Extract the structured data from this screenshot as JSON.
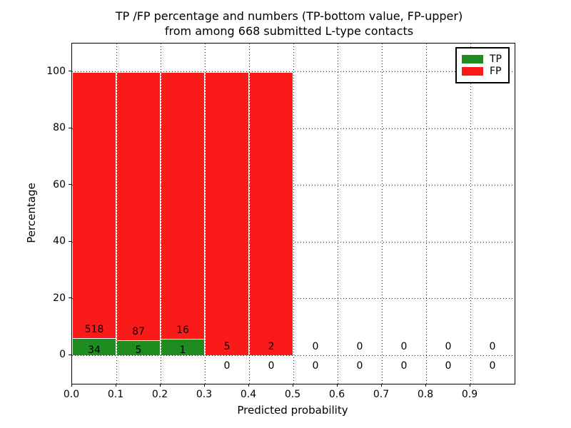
{
  "figure": {
    "title_line1": "TP /FP percentage and numbers (TP-bottom value, FP-upper)",
    "title_line2": "from among 668 submitted L-type contacts"
  },
  "chart_data": {
    "type": "bar",
    "stacked": true,
    "title": "TP /FP percentage and numbers (TP-bottom value, FP-upper) from among 668 submitted L-type contacts",
    "xlabel": "Predicted probability",
    "ylabel": "Percentage",
    "xlim": [
      0.0,
      1.0
    ],
    "ylim": [
      -10,
      110
    ],
    "xtick_labels": [
      "0.0",
      "0.1",
      "0.2",
      "0.3",
      "0.4",
      "0.5",
      "0.6",
      "0.7",
      "0.8",
      "0.9"
    ],
    "xtick_values": [
      0.0,
      0.1,
      0.2,
      0.3,
      0.4,
      0.5,
      0.6,
      0.7,
      0.8,
      0.9
    ],
    "ytick_values": [
      0,
      20,
      40,
      60,
      80,
      100
    ],
    "grid": true,
    "grid_style": "dotted",
    "bin_width": 0.1,
    "total_contacts": 668,
    "legend": {
      "position": "upper right",
      "entries": [
        {
          "label": "TP",
          "color": "#1e8c1e"
        },
        {
          "label": "FP",
          "color": "#fb1a1a"
        }
      ]
    },
    "series": [
      {
        "name": "TP",
        "role": "bottom",
        "color": "#1e8c1e",
        "counts": [
          34,
          5,
          1,
          0,
          0,
          0,
          0,
          0,
          0,
          0
        ]
      },
      {
        "name": "FP",
        "role": "upper",
        "color": "#fb1a1a",
        "counts": [
          518,
          87,
          16,
          5,
          2,
          0,
          0,
          0,
          0,
          0
        ]
      }
    ],
    "bins": [
      {
        "x0": 0.0,
        "x1": 0.1,
        "tp": 34,
        "fp": 518,
        "tp_pct": 6.16,
        "fp_pct": 93.84
      },
      {
        "x0": 0.1,
        "x1": 0.2,
        "tp": 5,
        "fp": 87,
        "tp_pct": 5.43,
        "fp_pct": 94.57
      },
      {
        "x0": 0.2,
        "x1": 0.3,
        "tp": 1,
        "fp": 16,
        "tp_pct": 5.88,
        "fp_pct": 94.12
      },
      {
        "x0": 0.3,
        "x1": 0.4,
        "tp": 0,
        "fp": 5,
        "tp_pct": 0.0,
        "fp_pct": 100.0
      },
      {
        "x0": 0.4,
        "x1": 0.5,
        "tp": 0,
        "fp": 2,
        "tp_pct": 0.0,
        "fp_pct": 100.0
      },
      {
        "x0": 0.5,
        "x1": 0.6,
        "tp": 0,
        "fp": 0,
        "tp_pct": 0.0,
        "fp_pct": 0.0
      },
      {
        "x0": 0.6,
        "x1": 0.7,
        "tp": 0,
        "fp": 0,
        "tp_pct": 0.0,
        "fp_pct": 0.0
      },
      {
        "x0": 0.7,
        "x1": 0.8,
        "tp": 0,
        "fp": 0,
        "tp_pct": 0.0,
        "fp_pct": 0.0
      },
      {
        "x0": 0.8,
        "x1": 0.9,
        "tp": 0,
        "fp": 0,
        "tp_pct": 0.0,
        "fp_pct": 0.0
      },
      {
        "x0": 0.9,
        "x1": 1.0,
        "tp": 0,
        "fp": 0,
        "tp_pct": 0.0,
        "fp_pct": 0.0
      }
    ]
  },
  "colors": {
    "tp": "#1e8c1e",
    "fp": "#fb1a1a",
    "grid": "#2a2a2a",
    "axis": "#000000",
    "background": "#ffffff"
  }
}
